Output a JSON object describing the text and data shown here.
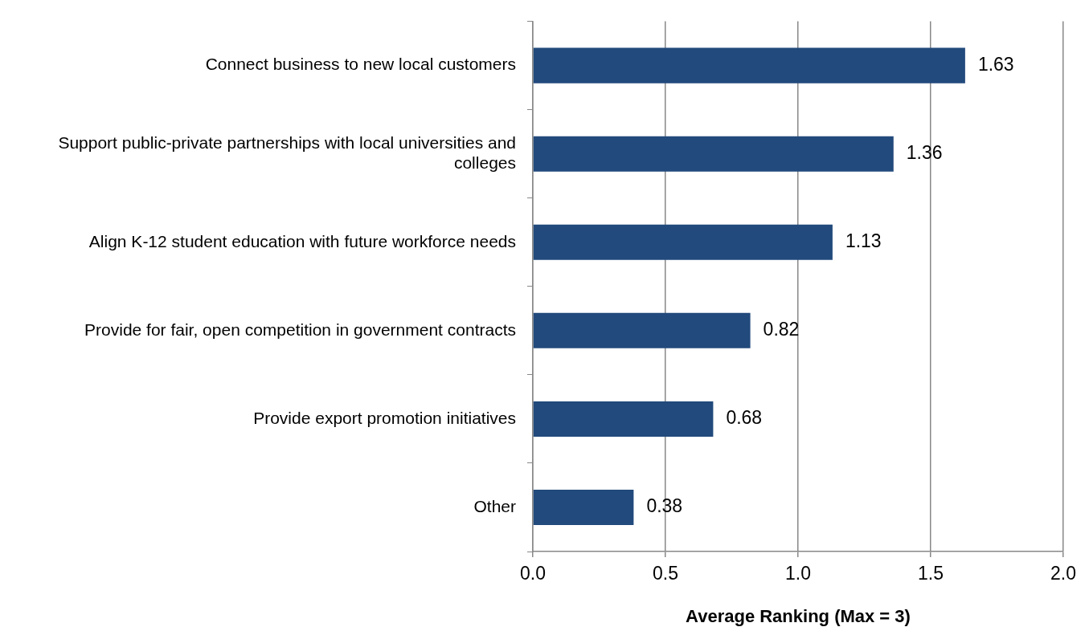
{
  "chart_data": {
    "type": "bar",
    "orientation": "horizontal",
    "xlabel": "Average Ranking (Max = 3)",
    "categories": [
      "Connect business to new local customers",
      "Support public-private partnerships with local universities and colleges",
      "Align K-12 student education with future workforce needs",
      "Provide for fair, open competition in government contracts",
      "Provide export promotion initiatives",
      "Other"
    ],
    "values": [
      1.63,
      1.36,
      1.13,
      0.82,
      0.68,
      0.38
    ],
    "color": "#224a7c",
    "xlim": [
      0,
      2
    ],
    "xticks": [
      {
        "value": 0,
        "label": "0.0"
      },
      {
        "value": 0.5,
        "label": "0.5"
      },
      {
        "value": 1,
        "label": "1.0"
      },
      {
        "value": 1.5,
        "label": "1.5"
      },
      {
        "value": 2,
        "label": "2.0"
      }
    ],
    "grid": "x",
    "legend": false,
    "data_labels": true
  }
}
